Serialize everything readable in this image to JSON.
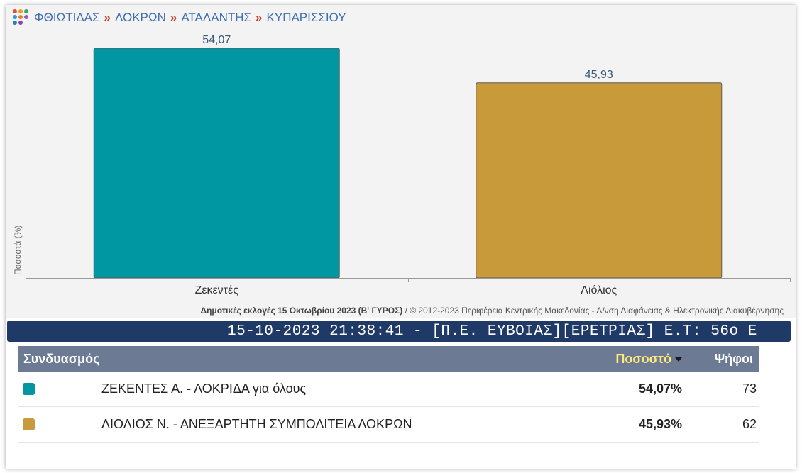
{
  "breadcrumb": {
    "items": [
      "ΦΘΙΩΤΙΔΑΣ",
      "ΛΟΚΡΩΝ",
      "ΑΤΑΛΑΝΤΗΣ",
      "ΚΥΠΑΡΙΣΣΙΟΥ"
    ],
    "separator": "»"
  },
  "chart_data": {
    "type": "bar",
    "categories": [
      "Ζεκεντές",
      "Λιόλιος"
    ],
    "values": [
      54.07,
      45.93
    ],
    "value_labels": [
      "54,07",
      "45,93"
    ],
    "colors": [
      "#0097a2",
      "#c89a3a"
    ],
    "title": "",
    "xlabel": "",
    "ylabel": "Ποσοστά (%)",
    "ylim": [
      0,
      54.07
    ],
    "grid": false,
    "legend": "none"
  },
  "chart_footer": {
    "bold": "Δημοτικές εκλογές 15 Οκτωβρίου 2023 (Β' ΓΥΡΟΣ)",
    "rest": " / © 2012-2023 Περιφέρεια Κεντρικής Μακεδονίας - Δ/νση Διαφάνειας & Ηλεκτρονικής Διακυβέρνησης"
  },
  "ticker": {
    "text": "15-10-2023 21:38:41 - [Π.Ε. ΕΥΒΟΙΑΣ][ΕΡΕΤΡΙΑΣ]  Ε.Τ: 56ο  Ε"
  },
  "table": {
    "headers": {
      "name": "Συνδυασμός",
      "percent": "Ποσοστό",
      "votes": "Ψήφοι"
    },
    "rows": [
      {
        "name": "ΖΕΚΕΝΤΕΣ Α. - ΛΟΚΡΙΔΑ για όλους",
        "percent": "54,07%",
        "votes": "73",
        "color": "#0097a2"
      },
      {
        "name": "ΛΙΟΛΙΟΣ Ν. - ΑΝΕΞΑΡΤΗΤΗ ΣΥΜΠΟΛΙΤΕΙΑ ΛΟΚΡΩΝ",
        "percent": "45,93%",
        "votes": "62",
        "color": "#c89a3a"
      }
    ]
  }
}
